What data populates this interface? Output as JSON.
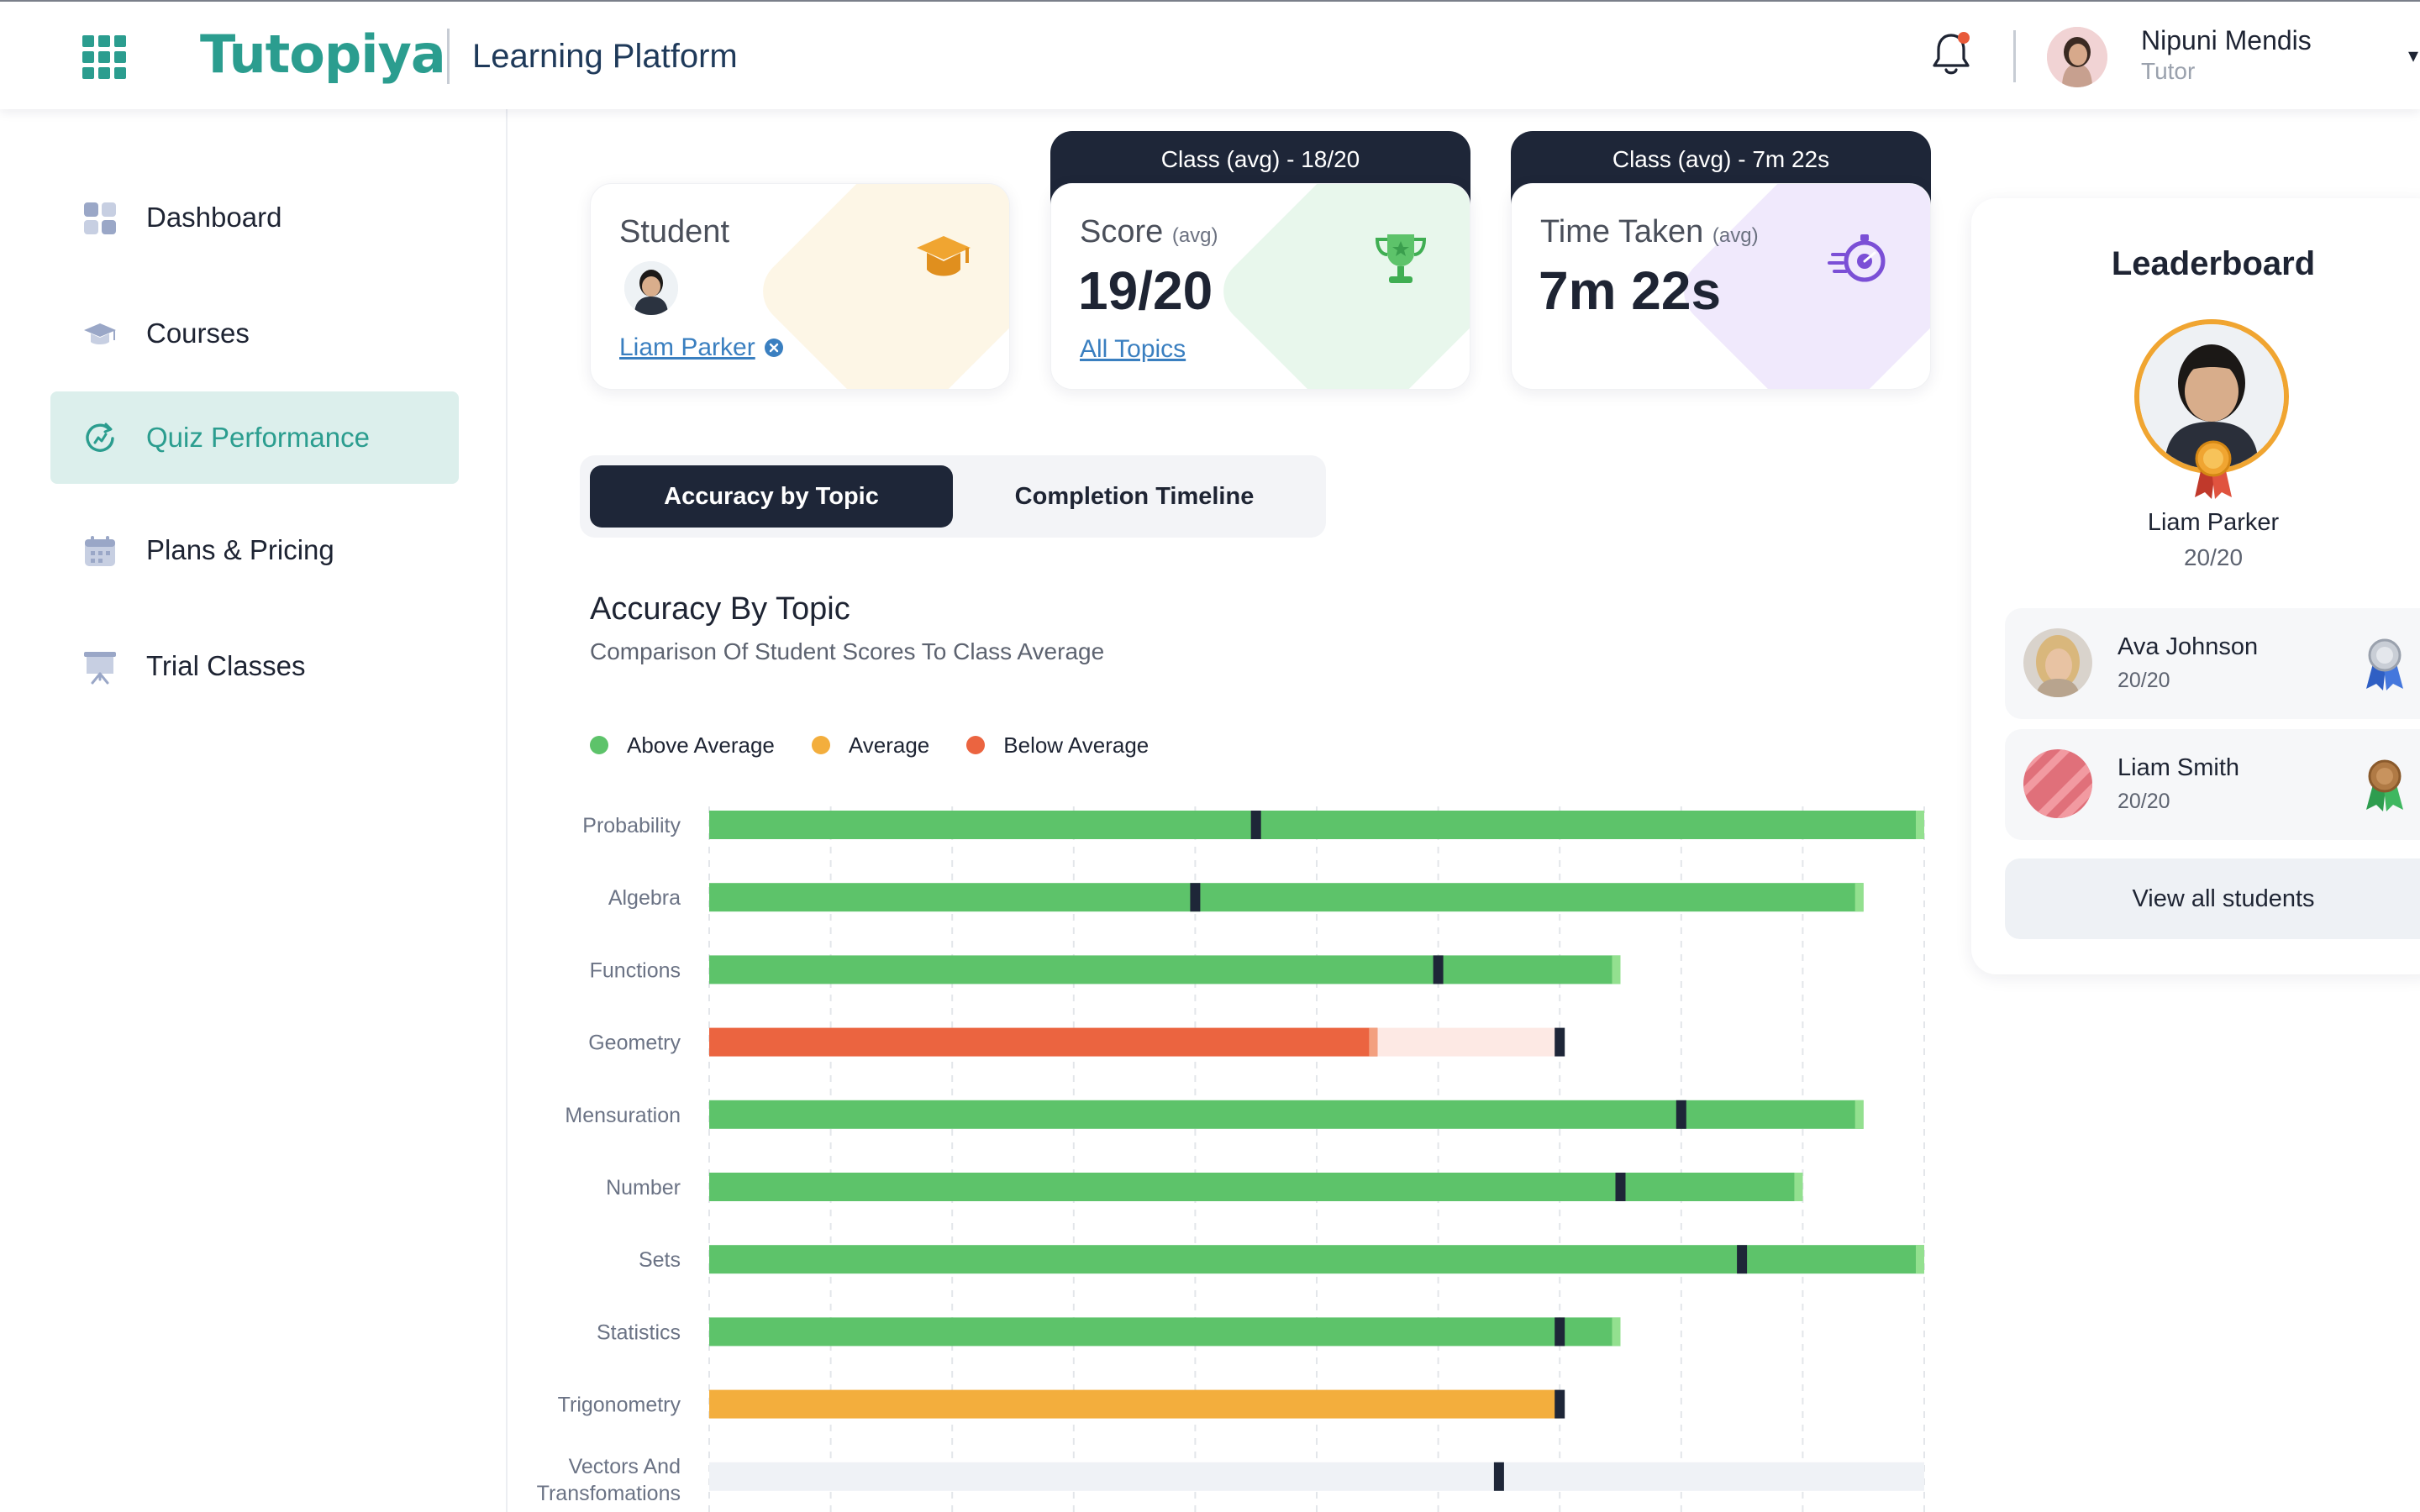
{
  "header": {
    "logo_text": "Tutopiya",
    "app_title": "Learning Platform",
    "user_name": "Nipuni Mendis",
    "user_role": "Tutor"
  },
  "sidebar": {
    "items": [
      {
        "label": "Dashboard",
        "icon": "dashboard-icon"
      },
      {
        "label": "Courses",
        "icon": "graduation-cap-icon"
      },
      {
        "label": "Quiz Performance",
        "icon": "refresh-chart-icon",
        "active": true
      },
      {
        "label": "Plans & Pricing",
        "icon": "calendar-icon"
      },
      {
        "label": "Trial Classes",
        "icon": "presentation-board-icon"
      }
    ]
  },
  "cards": {
    "student": {
      "title": "Student",
      "link": "Liam Parker"
    },
    "score": {
      "tab": "Class (avg) - 18/20",
      "title": "Score",
      "title_suffix": "(avg)",
      "value": "19/20",
      "link": "All Topics"
    },
    "time": {
      "tab": "Class (avg) - 7m 22s",
      "title": "Time Taken",
      "title_suffix": "(avg)",
      "value": "7m 22s"
    }
  },
  "tabs": {
    "accuracy": "Accuracy by Topic",
    "timeline": "Completion Timeline"
  },
  "chart_header": {
    "title": "Accuracy By Topic",
    "subtitle": "Comparison Of Student Scores To Class Average"
  },
  "legend": [
    {
      "label": "Above Average",
      "color": "#5dc36a"
    },
    {
      "label": "Average",
      "color": "#f3ae3d"
    },
    {
      "label": "Below Average",
      "color": "#eb6440"
    }
  ],
  "chart_data": {
    "type": "bar",
    "orientation": "horizontal",
    "title": "Accuracy By Topic",
    "subtitle": "Comparison Of Student Scores To Class Average",
    "categories": [
      "Probability",
      "Algebra",
      "Functions",
      "Geometry",
      "Mensuration",
      "Number",
      "Sets",
      "Statistics",
      "Trigonometry",
      "Vectors And Transfomations"
    ],
    "series": [
      {
        "name": "Student",
        "values": [
          100,
          95,
          75,
          55,
          95,
          90,
          100,
          75,
          70,
          0
        ]
      },
      {
        "name": "Class Average",
        "values": [
          45,
          40,
          60,
          70,
          80,
          75,
          85,
          70,
          70,
          65
        ]
      }
    ],
    "status": [
      "above",
      "above",
      "above",
      "below",
      "above",
      "above",
      "above",
      "above",
      "average",
      "none"
    ],
    "xlim": [
      0,
      100
    ],
    "grid": true,
    "legend_position": "top-left",
    "colors": {
      "above": "#5dc36a",
      "average": "#f3ae3d",
      "below": "#eb6440",
      "avg_marker": "#1e2638",
      "track": "#eff2f6"
    }
  },
  "leaderboard": {
    "title": "Leaderboard",
    "top": {
      "name": "Liam Parker",
      "score": "20/20"
    },
    "rows": [
      {
        "name": "Ava Johnson",
        "score": "20/20",
        "medal": "silver"
      },
      {
        "name": "Liam Smith",
        "score": "20/20",
        "medal": "bronze"
      }
    ],
    "button": "View all students"
  }
}
